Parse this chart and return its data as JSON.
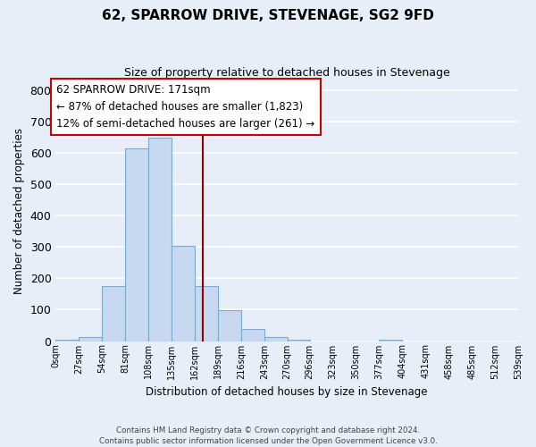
{
  "title": "62, SPARROW DRIVE, STEVENAGE, SG2 9FD",
  "subtitle": "Size of property relative to detached houses in Stevenage",
  "xlabel": "Distribution of detached houses by size in Stevenage",
  "ylabel": "Number of detached properties",
  "bin_edges": [
    0,
    27,
    54,
    81,
    108,
    135,
    162,
    189,
    216,
    243,
    270,
    296,
    323,
    350,
    377,
    404,
    431,
    458,
    485,
    512,
    539
  ],
  "bar_heights": [
    5,
    13,
    175,
    615,
    650,
    305,
    175,
    98,
    38,
    13,
    5,
    0,
    0,
    0,
    5,
    0,
    0,
    0,
    0,
    0
  ],
  "bar_color": "#c6d9f1",
  "bar_edge_color": "#7aabcc",
  "ylim": [
    0,
    830
  ],
  "yticks": [
    0,
    100,
    200,
    300,
    400,
    500,
    600,
    700,
    800
  ],
  "property_size": 171,
  "vline_color": "#990000",
  "annotation_box_color": "#ffffff",
  "annotation_box_edge": "#cc0000",
  "annotation_lines": [
    "62 SPARROW DRIVE: 171sqm",
    "← 87% of detached houses are smaller (1,823)",
    "12% of semi-detached houses are larger (261) →"
  ],
  "footer_lines": [
    "Contains HM Land Registry data © Crown copyright and database right 2024.",
    "Contains public sector information licensed under the Open Government Licence v3.0."
  ],
  "background_color": "#e8eef8",
  "grid_color": "#ffffff",
  "title_fontsize": 11,
  "subtitle_fontsize": 9
}
